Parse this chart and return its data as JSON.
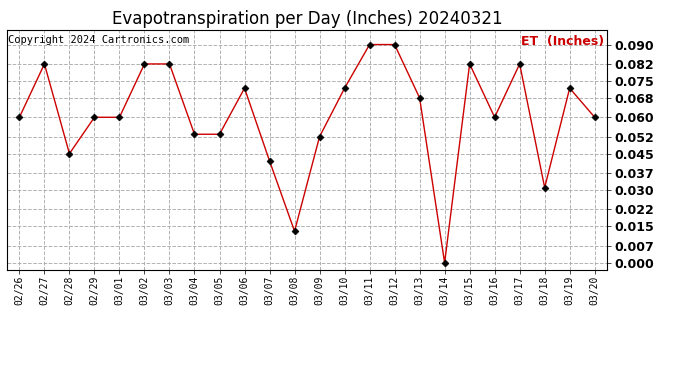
{
  "title": "Evapotranspiration per Day (Inches) 20240321",
  "copyright": "Copyright 2024 Cartronics.com",
  "legend_label": "ET  (Inches)",
  "dates": [
    "02/26",
    "02/27",
    "02/28",
    "02/29",
    "03/01",
    "03/02",
    "03/03",
    "03/04",
    "03/05",
    "03/06",
    "03/07",
    "03/08",
    "03/09",
    "03/10",
    "03/11",
    "03/12",
    "03/13",
    "03/14",
    "03/15",
    "03/16",
    "03/17",
    "03/18",
    "03/19",
    "03/20"
  ],
  "values": [
    0.06,
    0.082,
    0.045,
    0.06,
    0.06,
    0.082,
    0.082,
    0.053,
    0.053,
    0.072,
    0.042,
    0.013,
    0.052,
    0.072,
    0.09,
    0.09,
    0.068,
    0.0,
    0.082,
    0.06,
    0.082,
    0.031,
    0.072,
    0.06
  ],
  "line_color": "#cc0000",
  "marker_color": "#000000",
  "bg_color": "#ffffff",
  "grid_color": "#aaaaaa",
  "yticks": [
    0.0,
    0.007,
    0.015,
    0.022,
    0.03,
    0.037,
    0.045,
    0.052,
    0.06,
    0.068,
    0.075,
    0.082,
    0.09
  ],
  "ylim": [
    -0.003,
    0.096
  ],
  "title_fontsize": 12,
  "legend_color": "#cc0000",
  "copyright_fontsize": 7.5,
  "tick_fontsize": 9,
  "xtick_fontsize": 7
}
